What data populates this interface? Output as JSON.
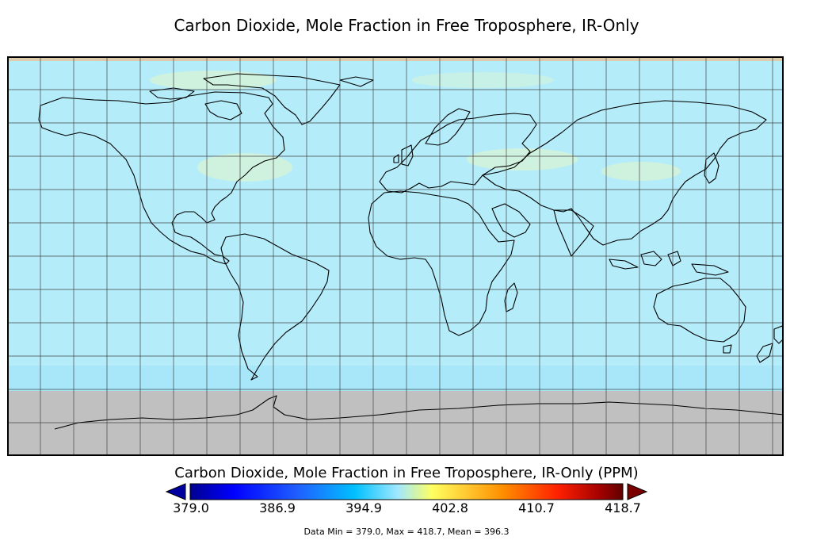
{
  "title": "Carbon Dioxide, Mole Fraction in Free Troposphere, IR-Only",
  "colorbar": {
    "title": "Carbon Dioxide, Mole Fraction in Free Troposphere, IR-Only (PPM)",
    "tick_labels": [
      "379.0",
      "386.9",
      "394.9",
      "402.8",
      "410.7",
      "418.7"
    ],
    "min": 379.0,
    "max": 418.7,
    "colors": [
      "#00008f",
      "#0000ff",
      "#2060ff",
      "#00c0ff",
      "#a0e8ff",
      "#ffff60",
      "#ff9000",
      "#ff2000",
      "#a00000",
      "#600000"
    ],
    "under_color": "#0000a0",
    "over_color": "#7a0000"
  },
  "stats": "Data Min = 379.0, Max = 418.7, Mean = 396.3",
  "map": {
    "projection": "equirectangular",
    "field_color": "#b4ecfa",
    "no_data_color": "#c0c0c0",
    "no_data_region": "Antarctica (south of about 60°S)",
    "gridlines": "every 15° longitude and latitude",
    "coastlines": true
  }
}
